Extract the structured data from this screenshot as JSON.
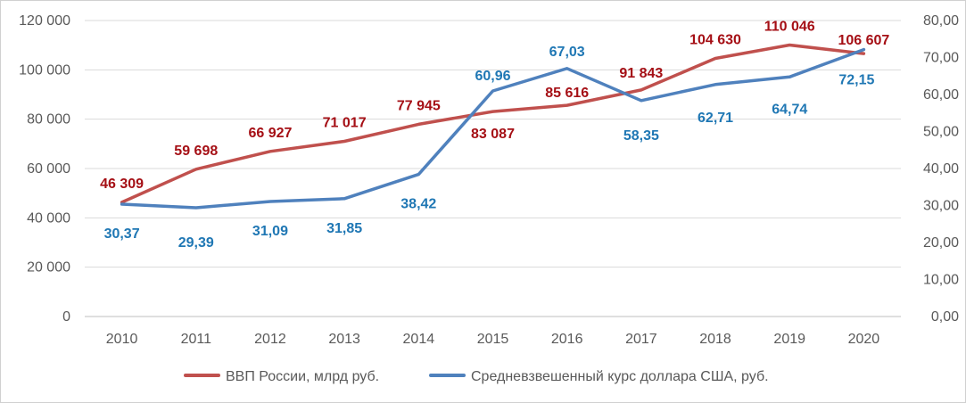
{
  "chart_data": {
    "type": "line",
    "title": "",
    "xlabel": "",
    "ylabel": "",
    "categories": [
      "2010",
      "2011",
      "2012",
      "2013",
      "2014",
      "2015",
      "2016",
      "2017",
      "2018",
      "2019",
      "2020"
    ],
    "y_left": {
      "range": [
        0,
        120000
      ],
      "ticks": [
        0,
        20000,
        40000,
        60000,
        80000,
        100000,
        120000
      ],
      "tick_labels": [
        "0",
        "20 000",
        "40 000",
        "60 000",
        "80 000",
        "100 000",
        "120 000"
      ]
    },
    "y_right": {
      "range": [
        0,
        80
      ],
      "ticks": [
        0,
        10,
        20,
        30,
        40,
        50,
        60,
        70,
        80
      ],
      "tick_labels": [
        "0,00",
        "10,00",
        "20,00",
        "30,00",
        "40,00",
        "50,00",
        "60,00",
        "70,00",
        "80,00"
      ]
    },
    "grid": true,
    "legend_position": "bottom",
    "series": [
      {
        "name": "ВВП России, млрд руб.",
        "axis": "left",
        "color": "#c0504d",
        "label_color": "#a50f15",
        "values": [
          46309,
          59698,
          66927,
          71017,
          77945,
          83087,
          85616,
          91843,
          104630,
          110046,
          106607
        ],
        "labels": [
          "46 309",
          "59 698",
          "66 927",
          "71 017",
          "77 945",
          "83 087",
          "85 616",
          "91 843",
          "104 630",
          "110 046",
          "106 607"
        ]
      },
      {
        "name": "Средневзвешенный курс доллара США, руб.",
        "axis": "right",
        "color": "#4f81bd",
        "label_color": "#1f77b4",
        "values": [
          30.37,
          29.39,
          31.09,
          31.85,
          38.42,
          60.96,
          67.03,
          58.35,
          62.71,
          64.74,
          72.15
        ],
        "labels": [
          "30,37",
          "29,39",
          "31,09",
          "31,85",
          "38,42",
          "60,96",
          "67,03",
          "58,35",
          "62,71",
          "64,74",
          "72,15"
        ]
      }
    ]
  }
}
